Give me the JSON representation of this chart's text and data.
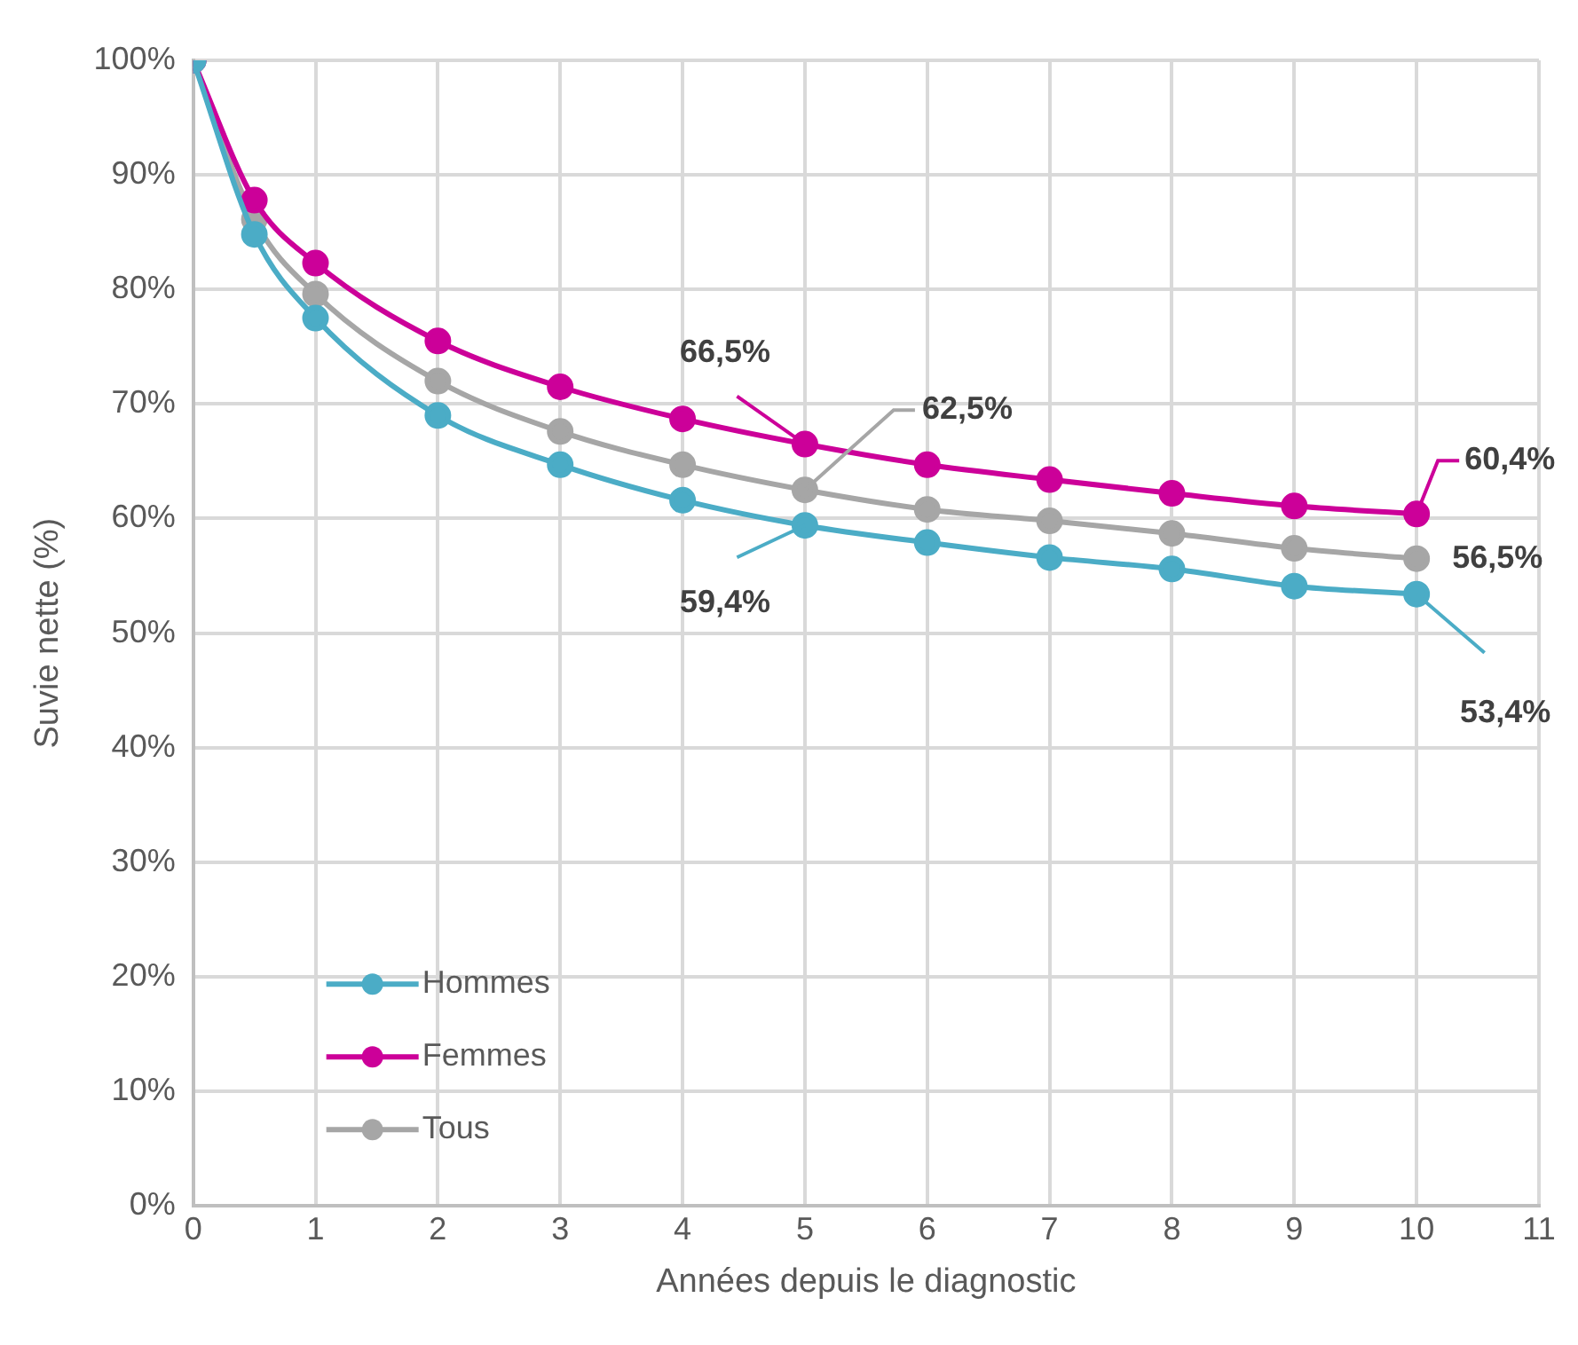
{
  "chart_data": {
    "type": "line",
    "xlabel": "Années depuis le diagnostic",
    "ylabel": "Suvie nette (%)",
    "x": [
      0,
      0.5,
      1,
      2,
      3,
      4,
      5,
      6,
      7,
      8,
      9,
      10
    ],
    "series": [
      {
        "name": "Hommes",
        "color": "#4bacc6",
        "values": [
          100,
          84.8,
          77.5,
          69.0,
          64.7,
          61.6,
          59.4,
          57.9,
          56.6,
          55.6,
          54.1,
          53.4
        ],
        "value_labels": [
          null,
          null,
          null,
          null,
          null,
          null,
          "59,4%",
          null,
          null,
          null,
          null,
          "53,4%"
        ]
      },
      {
        "name": "Femmes",
        "color": "#cc0099",
        "values": [
          100,
          87.8,
          82.3,
          75.5,
          71.5,
          68.7,
          66.5,
          64.7,
          63.4,
          62.2,
          61.1,
          60.4
        ],
        "value_labels": [
          null,
          null,
          null,
          null,
          null,
          null,
          "66,5%",
          null,
          null,
          null,
          null,
          "60,4%"
        ]
      },
      {
        "name": "Tous",
        "color": "#a6a6a6",
        "values": [
          100,
          86.1,
          79.6,
          72.0,
          67.6,
          64.7,
          62.5,
          60.8,
          59.8,
          58.7,
          57.4,
          56.5
        ],
        "value_labels": [
          null,
          null,
          null,
          null,
          null,
          null,
          "62,5%",
          null,
          null,
          null,
          null,
          "56,5%"
        ]
      }
    ],
    "xlim": [
      0,
      11
    ],
    "xticks": [
      0,
      1,
      2,
      3,
      4,
      5,
      6,
      7,
      8,
      9,
      10,
      11
    ],
    "ylim": [
      0,
      100
    ],
    "yticks": [
      {
        "value": 0,
        "label": "0%"
      },
      {
        "value": 10,
        "label": "10%"
      },
      {
        "value": 20,
        "label": "20%"
      },
      {
        "value": 30,
        "label": "30%"
      },
      {
        "value": 40,
        "label": "40%"
      },
      {
        "value": 50,
        "label": "50%"
      },
      {
        "value": 60,
        "label": "60%"
      },
      {
        "value": 70,
        "label": "70%"
      },
      {
        "value": 80,
        "label": "80%"
      },
      {
        "value": 90,
        "label": "90%"
      },
      {
        "value": 100,
        "label": "100%"
      }
    ],
    "grid": true,
    "legend": "bottom left",
    "marker": "circle",
    "line_style": "solid"
  }
}
